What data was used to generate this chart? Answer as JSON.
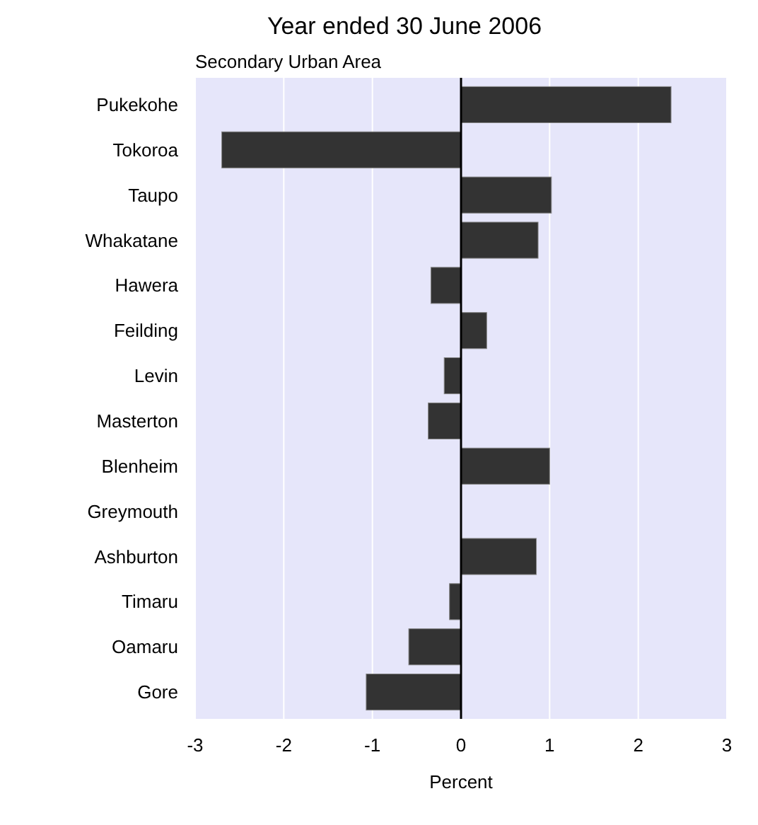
{
  "chart_data": {
    "type": "bar",
    "orientation": "horizontal",
    "title": "Year ended 30 June 2006",
    "subtitle": "Secondary Urban Area",
    "xlabel": "Percent",
    "categories": [
      "Pukekohe",
      "Tokoroa",
      "Taupo",
      "Whakatane",
      "Hawera",
      "Feilding",
      "Levin",
      "Masterton",
      "Blenheim",
      "Greymouth",
      "Ashburton",
      "Timaru",
      "Oamaru",
      "Gore"
    ],
    "values": [
      2.37,
      -2.7,
      1.02,
      0.87,
      -0.34,
      0.29,
      -0.19,
      -0.37,
      1.0,
      0,
      0.85,
      -0.13,
      -0.59,
      -1.07
    ],
    "color": "#333333",
    "xlim": [
      -3,
      3
    ],
    "xticks": [
      -3,
      -2,
      -1,
      0,
      1,
      2,
      3
    ],
    "grid": "x"
  }
}
